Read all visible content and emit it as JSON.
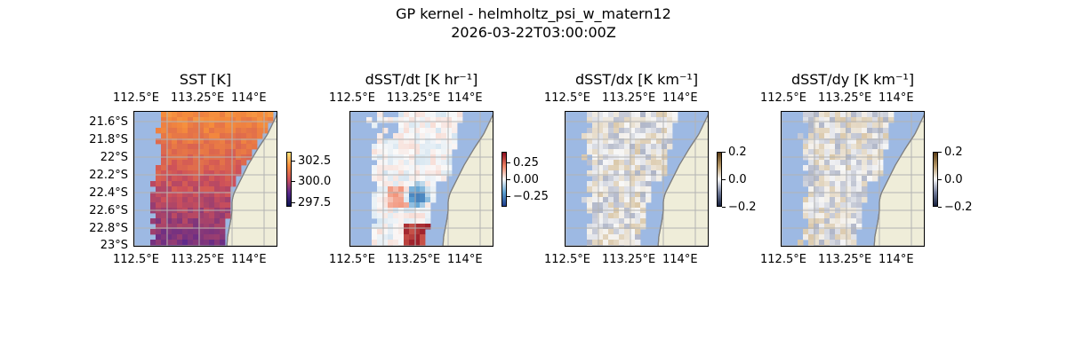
{
  "figure": {
    "title": "GP kernel - helmholtz_psi_w_matern12",
    "subtitle": "2026-03-22T03:00:00Z"
  },
  "colors": {
    "land": "#efedd9",
    "sea_masked": "#9db9e3",
    "grid": "#b3b3b3",
    "coast": "#7f7f7f"
  },
  "panels": [
    {
      "title": "SST [K]",
      "x_ticks_top": [
        "112.5°E",
        "113.25°E",
        "114°E"
      ],
      "x_ticks_bottom": [
        "112.5°E",
        "113.25°E",
        "114°E"
      ],
      "y_ticks": [
        "21.6°S",
        "21.8°S",
        "22°S",
        "22.2°S",
        "22.4°S",
        "22.6°S",
        "22.8°S",
        "23°S"
      ],
      "colormap": "thermal",
      "colorbar": {
        "ticks": [
          "302.5",
          "300.0",
          "297.5"
        ],
        "range": [
          297,
          303.5
        ]
      }
    },
    {
      "title": "dSST/dt [K hr⁻¹]",
      "x_ticks_top": [
        "112.5°E",
        "113.25°E",
        "114°E"
      ],
      "x_ticks_bottom": [
        "112.5°E",
        "113.25°E",
        "114°E"
      ],
      "y_ticks": [],
      "colormap": "diverging-red-blue",
      "colorbar": {
        "ticks": [
          "0.25",
          "0.00",
          "−0.25"
        ],
        "range": [
          -0.4,
          0.4
        ]
      }
    },
    {
      "title": "dSST/dx [K km⁻¹]",
      "x_ticks_top": [
        "112.5°E",
        "113.25°E",
        "114°E"
      ],
      "x_ticks_bottom": [
        "112.5°E",
        "113.25°E",
        "114°E"
      ],
      "y_ticks": [],
      "colormap": "diverging-brown-slate",
      "colorbar": {
        "ticks": [
          "0.2",
          "0.0",
          "−0.2"
        ],
        "range": [
          -0.2,
          0.2
        ]
      }
    },
    {
      "title": "dSST/dy [K km⁻¹]",
      "x_ticks_top": [
        "112.5°E",
        "113.25°E",
        "114°E"
      ],
      "x_ticks_bottom": [
        "112.5°E",
        "113.25°E",
        "114°E"
      ],
      "y_ticks": [],
      "colormap": "diverging-brown-slate",
      "colorbar": {
        "ticks": [
          "0.2",
          "0.0",
          "−0.2"
        ],
        "range": [
          -0.2,
          0.2
        ]
      }
    }
  ],
  "chart_data": [
    {
      "type": "heatmap",
      "title": "SST [K]",
      "x_range": [
        112.5,
        114.2
      ],
      "y_range": [
        -23.05,
        -21.5
      ],
      "value_range": [
        297,
        303.5
      ],
      "summary": {
        "north": 302.5,
        "central": 301.0,
        "south": 299.5
      }
    },
    {
      "type": "heatmap",
      "title": "dSST/dt [K hr⁻¹]",
      "x_range": [
        112.5,
        114.2
      ],
      "y_range": [
        -23.05,
        -21.5
      ],
      "value_range": [
        -0.4,
        0.4
      ],
      "summary": {
        "south_max": 0.35,
        "center_min": -0.3
      }
    },
    {
      "type": "heatmap",
      "title": "dSST/dx [K km⁻¹]",
      "x_range": [
        112.5,
        114.2
      ],
      "y_range": [
        -23.05,
        -21.5
      ],
      "value_range": [
        -0.2,
        0.2
      ]
    },
    {
      "type": "heatmap",
      "title": "dSST/dy [K km⁻¹]",
      "x_range": [
        112.5,
        114.2
      ],
      "y_range": [
        -23.05,
        -21.5
      ],
      "value_range": [
        -0.2,
        0.2
      ]
    }
  ]
}
